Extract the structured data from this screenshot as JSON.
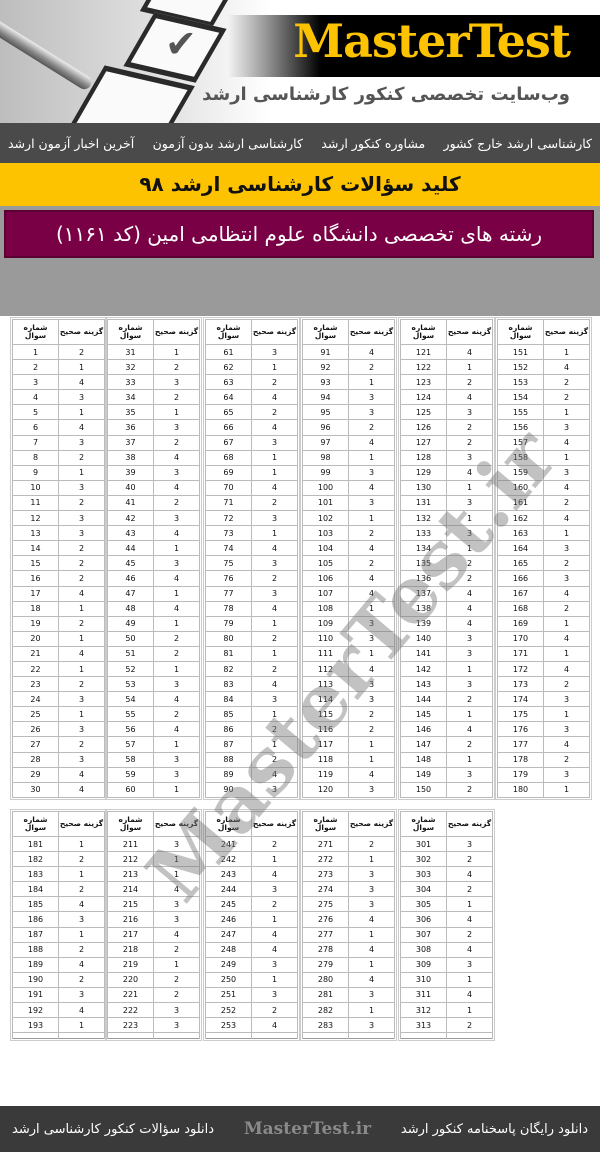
{
  "banner": {
    "logo": "MasterTest",
    "tagline": "وب‌سایت تخصصی کنکور کارشناسی ارشد"
  },
  "nav": {
    "items": [
      {
        "label": "آخرین اخبار آزمون ارشد"
      },
      {
        "label": "کارشناسی ارشد بدون آزمون"
      },
      {
        "label": "مشاوره کنکور ارشد"
      },
      {
        "label": "کارشناسی ارشد خارج کشور"
      }
    ]
  },
  "title": "کلید سؤالات کارشناسی ارشد ۹۸",
  "subject": "رشته های تخصصی دانشگاه علوم انتظامی امین (کد ۱۱۶۱)",
  "table_headers": {
    "question": "شماره سوال",
    "answer": "گزینه صحیح"
  },
  "answer_tables": [
    {
      "questions": [
        1,
        2,
        3,
        4,
        5,
        6,
        7,
        8,
        9,
        10,
        11,
        12,
        13,
        14,
        15,
        16,
        17,
        18,
        19,
        20,
        21,
        22,
        23,
        24,
        25,
        26,
        27,
        28,
        29,
        30
      ],
      "answers": [
        2,
        1,
        4,
        3,
        1,
        4,
        3,
        2,
        1,
        3,
        2,
        3,
        3,
        2,
        2,
        2,
        4,
        1,
        2,
        1,
        4,
        1,
        2,
        3,
        1,
        3,
        2,
        3,
        4,
        4
      ]
    },
    {
      "questions": [
        31,
        32,
        33,
        34,
        35,
        36,
        37,
        38,
        39,
        40,
        41,
        42,
        43,
        44,
        45,
        46,
        47,
        48,
        49,
        50,
        51,
        52,
        53,
        54,
        55,
        56,
        57,
        58,
        59,
        60
      ],
      "answers": [
        1,
        2,
        3,
        2,
        1,
        3,
        2,
        4,
        3,
        4,
        2,
        3,
        4,
        1,
        3,
        4,
        1,
        4,
        1,
        2,
        2,
        1,
        3,
        4,
        2,
        4,
        1,
        3,
        3,
        1
      ]
    },
    {
      "questions": [
        61,
        62,
        63,
        64,
        65,
        66,
        67,
        68,
        69,
        70,
        71,
        72,
        73,
        74,
        75,
        76,
        77,
        78,
        79,
        80,
        81,
        82,
        83,
        84,
        85,
        86,
        87,
        88,
        89,
        90
      ],
      "answers": [
        3,
        1,
        2,
        4,
        2,
        4,
        3,
        1,
        1,
        4,
        2,
        3,
        1,
        4,
        3,
        2,
        3,
        4,
        1,
        2,
        1,
        2,
        4,
        3,
        1,
        2,
        1,
        2,
        4,
        3
      ]
    },
    {
      "questions": [
        91,
        92,
        93,
        94,
        95,
        96,
        97,
        98,
        99,
        100,
        101,
        102,
        103,
        104,
        105,
        106,
        107,
        108,
        109,
        110,
        111,
        112,
        113,
        114,
        115,
        116,
        117,
        118,
        119,
        120
      ],
      "answers": [
        4,
        2,
        1,
        3,
        3,
        2,
        4,
        1,
        3,
        4,
        3,
        1,
        2,
        4,
        2,
        4,
        4,
        1,
        3,
        3,
        1,
        4,
        3,
        3,
        2,
        2,
        1,
        1,
        4,
        3
      ]
    },
    {
      "questions": [
        121,
        122,
        123,
        124,
        125,
        126,
        127,
        128,
        129,
        130,
        131,
        132,
        133,
        134,
        135,
        136,
        137,
        138,
        139,
        140,
        141,
        142,
        143,
        144,
        145,
        146,
        147,
        148,
        149,
        150
      ],
      "answers": [
        4,
        1,
        2,
        4,
        3,
        2,
        2,
        3,
        4,
        1,
        3,
        1,
        3,
        1,
        2,
        2,
        4,
        4,
        4,
        3,
        3,
        1,
        3,
        2,
        1,
        4,
        2,
        1,
        3,
        2
      ]
    },
    {
      "questions": [
        151,
        152,
        153,
        154,
        155,
        156,
        157,
        158,
        159,
        160,
        161,
        162,
        163,
        164,
        165,
        166,
        167,
        168,
        169,
        170,
        171,
        172,
        173,
        174,
        175,
        176,
        177,
        178,
        179,
        180
      ],
      "answers": [
        1,
        4,
        2,
        2,
        1,
        3,
        4,
        1,
        3,
        4,
        2,
        4,
        1,
        3,
        2,
        3,
        4,
        2,
        1,
        4,
        1,
        4,
        2,
        3,
        1,
        3,
        4,
        2,
        3,
        1
      ]
    },
    {
      "questions": [
        181,
        182,
        183,
        184,
        185,
        186,
        187,
        188,
        189,
        190,
        191,
        192,
        193
      ],
      "answers": [
        1,
        2,
        1,
        2,
        4,
        3,
        1,
        2,
        4,
        2,
        3,
        4,
        1
      ]
    },
    {
      "questions": [
        211,
        212,
        213,
        214,
        215,
        216,
        217,
        218,
        219,
        220,
        221,
        222,
        223
      ],
      "answers": [
        3,
        1,
        1,
        4,
        3,
        3,
        4,
        2,
        1,
        2,
        2,
        3,
        3
      ]
    },
    {
      "questions": [
        241,
        242,
        243,
        244,
        245,
        246,
        247,
        248,
        249,
        250,
        251,
        252,
        253
      ],
      "answers": [
        2,
        1,
        4,
        3,
        2,
        1,
        4,
        4,
        3,
        1,
        3,
        2,
        4
      ]
    },
    {
      "questions": [
        271,
        272,
        273,
        274,
        275,
        276,
        277,
        278,
        279,
        280,
        281,
        282,
        283
      ],
      "answers": [
        2,
        1,
        3,
        3,
        3,
        4,
        1,
        4,
        1,
        4,
        3,
        1,
        3
      ]
    },
    {
      "questions": [
        301,
        302,
        303,
        304,
        305,
        306,
        307,
        308,
        309,
        310,
        311,
        312,
        313
      ],
      "answers": [
        3,
        2,
        4,
        2,
        1,
        4,
        2,
        4,
        3,
        1,
        4,
        1,
        2
      ]
    }
  ],
  "watermark": "MasterTest.ir",
  "footer": {
    "left_link": "دانلود سؤالات کنکور کارشناسی ارشد",
    "site": "MasterTest.ir",
    "right_link": "دانلود رایگان پاسخنامه کنکور ارشد"
  },
  "colors": {
    "accent_yellow": "#fdc300",
    "maroon": "#7a0045",
    "nav_bg": "#4a4a4a",
    "footer_bg": "#3a3a3a"
  }
}
